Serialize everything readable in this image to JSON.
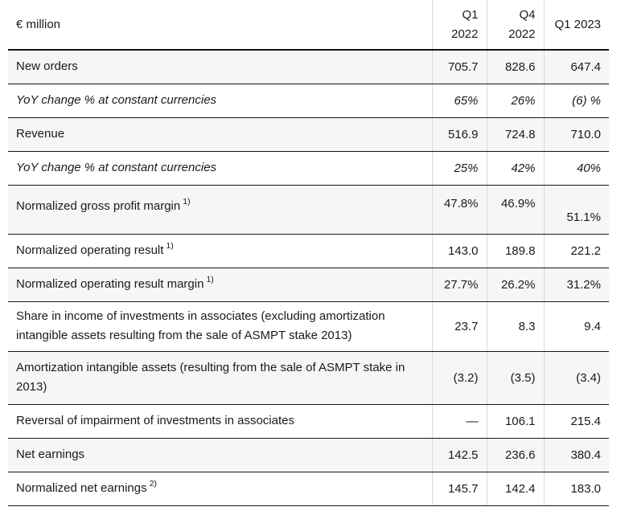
{
  "table": {
    "unit_label": "€ million",
    "columns": [
      [
        "Q1",
        "2022"
      ],
      [
        "Q4",
        "2022"
      ],
      [
        "Q1 2023"
      ]
    ],
    "rows": [
      {
        "label": "New orders",
        "values": [
          "705.7",
          "828.6",
          "647.4"
        ]
      },
      {
        "label": "YoY change % at constant currencies",
        "values": [
          "65%",
          "26%",
          "(6) %"
        ]
      },
      {
        "label": "Revenue",
        "values": [
          "516.9",
          "724.8",
          "710.0"
        ]
      },
      {
        "label": "YoY change % at constant currencies",
        "values": [
          "25%",
          "42%",
          "40%"
        ]
      },
      {
        "label": "Normalized gross profit margin",
        "sup": "1)",
        "values": [
          "47.8%",
          "46.9%",
          "51.1%"
        ]
      },
      {
        "label": "Normalized operating result",
        "sup": "1)",
        "values": [
          "143.0",
          "189.8",
          "221.2"
        ]
      },
      {
        "label": "Normalized operating result margin",
        "sup": "1)",
        "values": [
          "27.7%",
          "26.2%",
          "31.2%"
        ]
      },
      {
        "label": "Share in income of investments in associates (excluding amortization intangible assets resulting from the sale of ASMPT stake 2013)",
        "values": [
          "23.7",
          "8.3",
          "9.4"
        ]
      },
      {
        "label": "Amortization intangible assets (resulting from the sale of ASMPT stake in 2013)",
        "values": [
          "(3.2)",
          "(3.5)",
          "(3.4)"
        ]
      },
      {
        "label": "Reversal of impairment of investments in associates",
        "values": [
          "—",
          "106.1",
          "215.4"
        ]
      },
      {
        "label": "Net earnings",
        "values": [
          "142.5",
          "236.6",
          "380.4"
        ]
      },
      {
        "label": "Normalized net earnings",
        "sup": "2)",
        "values": [
          "145.7",
          "142.4",
          "183.0"
        ]
      }
    ],
    "colors": {
      "shaded_row": "#f6f6f7",
      "dark_border": "#161616",
      "light_border": "#d8d8da",
      "text": "#1a1a1a"
    }
  }
}
